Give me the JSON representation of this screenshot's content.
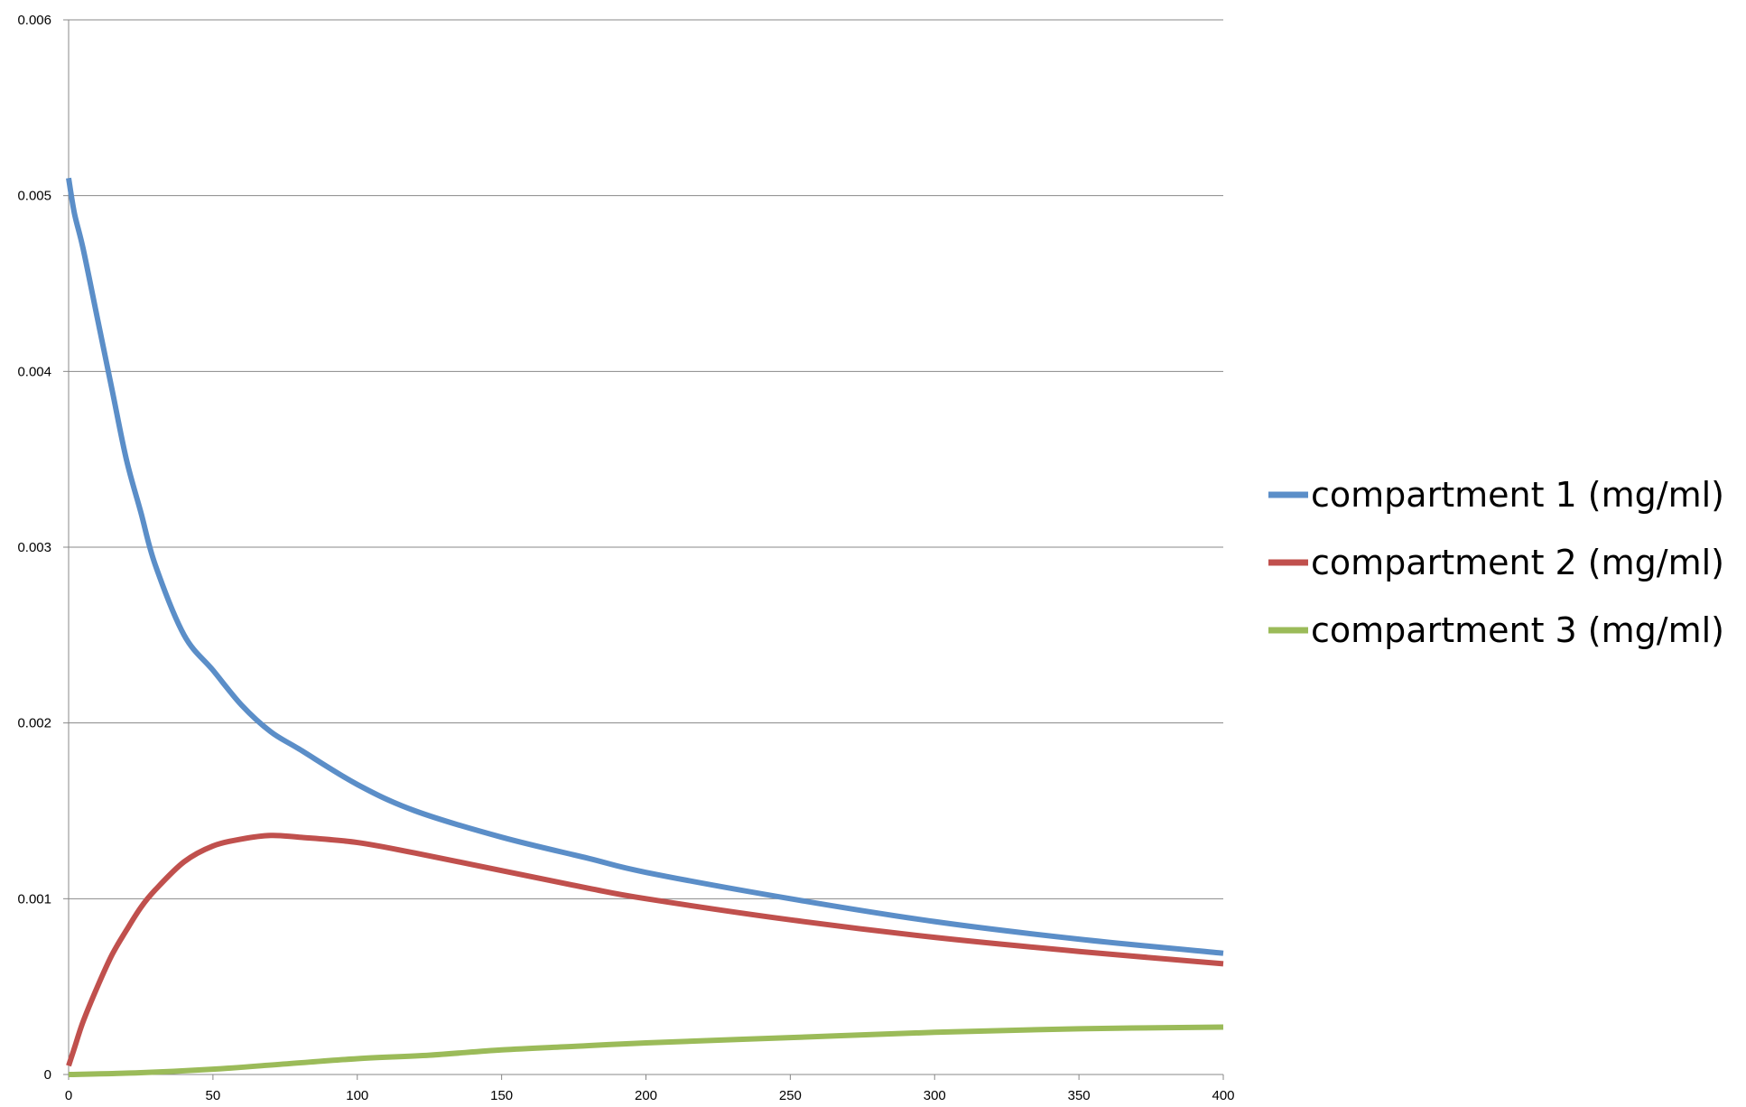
{
  "chart_data": {
    "type": "line",
    "title": "",
    "xlabel": "",
    "ylabel": "",
    "xlim": [
      0,
      400
    ],
    "ylim": [
      0,
      0.006
    ],
    "x_ticks": [
      0,
      50,
      100,
      150,
      200,
      250,
      300,
      350,
      400
    ],
    "x_tick_labels": [
      "0",
      "50",
      "100",
      "150",
      "200",
      "250",
      "300",
      "350",
      "400"
    ],
    "y_ticks": [
      0,
      0.001,
      0.002,
      0.003,
      0.004,
      0.005,
      0.006
    ],
    "y_tick_labels": [
      "0",
      "0.001",
      "0.002",
      "0.003",
      "0.004",
      "0.005",
      "0.006"
    ],
    "grid": {
      "horizontal": true,
      "vertical": false,
      "color": "#888888"
    },
    "legend_position": "right",
    "series": [
      {
        "name": "compartment 1 (mg/ml)",
        "color": "#5b8ec8",
        "x": [
          0,
          2,
          5,
          10,
          15,
          20,
          25,
          30,
          40,
          50,
          60,
          70,
          80,
          100,
          120,
          150,
          180,
          200,
          250,
          300,
          350,
          400
        ],
        "y": [
          0.0051,
          0.0049,
          0.0047,
          0.0043,
          0.0039,
          0.0035,
          0.0032,
          0.0029,
          0.0025,
          0.0023,
          0.0021,
          0.00195,
          0.00185,
          0.00165,
          0.0015,
          0.00135,
          0.00123,
          0.00115,
          0.001,
          0.00087,
          0.00077,
          0.00069
        ]
      },
      {
        "name": "compartment 2 (mg/ml)",
        "color": "#c0504d",
        "x": [
          0,
          2,
          5,
          10,
          15,
          20,
          25,
          30,
          40,
          50,
          60,
          70,
          80,
          100,
          120,
          150,
          180,
          200,
          250,
          300,
          350,
          400
        ],
        "y": [
          5e-05,
          0.00015,
          0.0003,
          0.0005,
          0.00068,
          0.00082,
          0.00095,
          0.00105,
          0.00121,
          0.0013,
          0.00134,
          0.00136,
          0.00135,
          0.00132,
          0.00126,
          0.00116,
          0.00106,
          0.001,
          0.00088,
          0.00078,
          0.0007,
          0.00063
        ]
      },
      {
        "name": "compartment 3 (mg/ml)",
        "color": "#9bbb59",
        "x": [
          0,
          25,
          50,
          75,
          100,
          125,
          150,
          175,
          200,
          250,
          300,
          350,
          400
        ],
        "y": [
          0,
          1e-05,
          3e-05,
          6e-05,
          9e-05,
          0.00011,
          0.00014,
          0.00016,
          0.00018,
          0.00021,
          0.00024,
          0.00026,
          0.00027
        ]
      }
    ]
  }
}
